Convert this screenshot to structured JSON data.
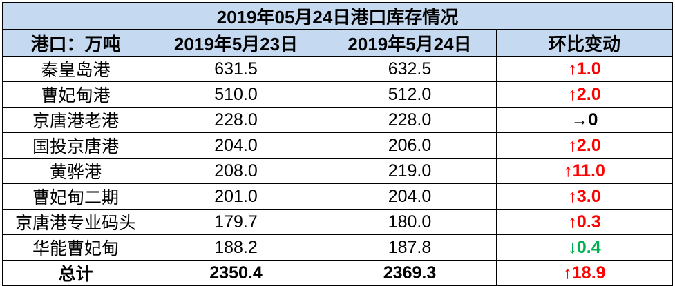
{
  "table": {
    "title": "2019年05月24日港口库存情况",
    "header": [
      "港口：万吨",
      "2019年5月23日",
      "2019年5月24日",
      "环比变动"
    ],
    "rows": [
      {
        "cells": [
          "秦皇岛港",
          "631.5",
          "632.5",
          "↑1.0"
        ],
        "change_color": "#ff0000"
      },
      {
        "cells": [
          "曹妃甸港",
          "510.0",
          "512.0",
          "↑2.0"
        ],
        "change_color": "#ff0000"
      },
      {
        "cells": [
          "京唐港老港",
          "228.0",
          "228.0",
          "→0"
        ],
        "change_color": "#000000"
      },
      {
        "cells": [
          "国投京唐港",
          "204.0",
          "206.0",
          "↑2.0"
        ],
        "change_color": "#ff0000"
      },
      {
        "cells": [
          "黄骅港",
          "208.0",
          "219.0",
          "↑11.0"
        ],
        "change_color": "#ff0000"
      },
      {
        "cells": [
          "曹妃甸二期",
          "201.0",
          "204.0",
          "↑3.0"
        ],
        "change_color": "#ff0000"
      },
      {
        "cells": [
          "京唐港专业码头",
          "179.7",
          "180.0",
          "↑0.3"
        ],
        "change_color": "#ff0000"
      },
      {
        "cells": [
          "华能曹妃甸",
          "188.2",
          "187.8",
          "↓0.4"
        ],
        "change_color": "#00b050"
      }
    ],
    "total": {
      "cells": [
        "总计",
        "2350.4",
        "2369.3",
        "↑18.9"
      ],
      "change_color": "#ff0000"
    }
  }
}
